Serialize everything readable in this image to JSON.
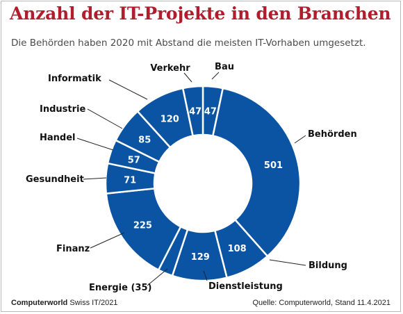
{
  "header": {
    "title": "Anzahl der IT-Projekte in den Branchen",
    "subtitle": "Die Behörden haben 2020 mit Abstand die meisten IT-Vorhaben umgesetzt."
  },
  "footer": {
    "brand": "Computerworld",
    "issue": "Swiss IT/2021",
    "source": "Quelle: Computerworld, Stand 11.4.2021"
  },
  "colors": {
    "accent": "#b01e2d",
    "segment": "#0b54a4",
    "separator": "#ffffff"
  },
  "chart_data": {
    "type": "pie",
    "variant": "donut",
    "title": "Anzahl der IT-Projekte in den Branchen",
    "slices": [
      {
        "category": "Bau",
        "value": 47,
        "label": "Bau",
        "value_label": "47"
      },
      {
        "category": "Behörden",
        "value": 501,
        "label": "Behörden",
        "value_label": "501"
      },
      {
        "category": "Bildung",
        "value": 108,
        "label": "Bildung",
        "value_label": "108"
      },
      {
        "category": "Dienstleistung",
        "value": 129,
        "label": "Dienstleistung",
        "value_label": "129"
      },
      {
        "category": "Energie",
        "value": 35,
        "label": "Energie (35)",
        "value_label": ""
      },
      {
        "category": "Finanz",
        "value": 225,
        "label": "Finanz",
        "value_label": "225"
      },
      {
        "category": "Gesundheit",
        "value": 71,
        "label": "Gesundheit",
        "value_label": "71"
      },
      {
        "category": "Handel",
        "value": 57,
        "label": "Handel",
        "value_label": "57"
      },
      {
        "category": "Industrie",
        "value": 85,
        "label": "Industrie",
        "value_label": "85"
      },
      {
        "category": "Informatik",
        "value": 120,
        "label": "Informatik",
        "value_label": "120"
      },
      {
        "category": "Verkehr",
        "value": 47,
        "label": "Verkehr",
        "value_label": "47"
      }
    ]
  }
}
